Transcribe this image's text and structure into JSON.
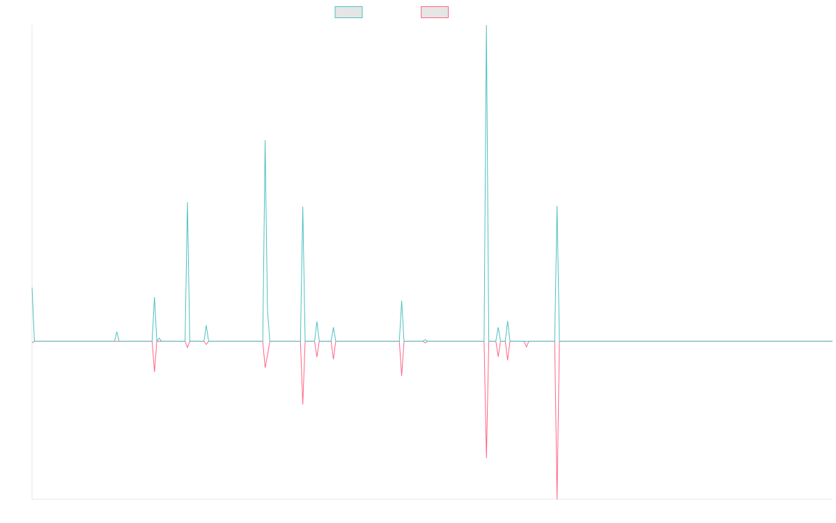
{
  "chart_data": {
    "type": "line",
    "xlim": [
      0,
      340
    ],
    "ylim": [
      -0.5,
      1
    ],
    "x": [
      0,
      1,
      35,
      36,
      37,
      51,
      52,
      53,
      54,
      55,
      65,
      66,
      67,
      73,
      74,
      75,
      98,
      99,
      100,
      101,
      114,
      115,
      116,
      120,
      121,
      122,
      127,
      128,
      129,
      156,
      157,
      158,
      166,
      167,
      168,
      192,
      193,
      194,
      197,
      198,
      199,
      201,
      202,
      203,
      209,
      210,
      211,
      222,
      223,
      224,
      340
    ],
    "series": [
      {
        "color": "#ff6384",
        "values": [
          -0.005,
          0,
          0,
          0,
          0,
          0,
          -0.097,
          0,
          0,
          0,
          0,
          -0.02,
          0,
          0,
          -0.01,
          0,
          0,
          -0.084,
          -0.044,
          0,
          0,
          -0.2,
          0,
          0,
          -0.05,
          0,
          0,
          -0.057,
          0,
          0,
          -0.11,
          0,
          0,
          -0.005,
          0,
          0,
          -0.37,
          0,
          0,
          -0.049,
          0,
          0,
          -0.06,
          0,
          0,
          -0.018,
          0,
          0,
          -0.5,
          0,
          0
        ]
      },
      {
        "color": "#4bc0c0",
        "values": [
          0.17,
          0,
          0,
          0.03,
          0,
          0,
          0.14,
          0,
          0.01,
          0,
          0,
          0.44,
          0,
          0,
          0.05,
          0,
          0,
          0.636,
          0.1,
          0,
          0,
          0.426,
          0,
          0,
          0.062,
          0,
          0,
          0.044,
          0,
          0,
          0.128,
          0,
          0,
          0.005,
          0,
          0,
          1,
          0,
          0,
          0.044,
          0,
          0,
          0.064,
          0,
          0,
          0,
          0,
          0,
          0.428,
          0,
          0
        ]
      }
    ],
    "legend_order": [
      1,
      0
    ]
  }
}
